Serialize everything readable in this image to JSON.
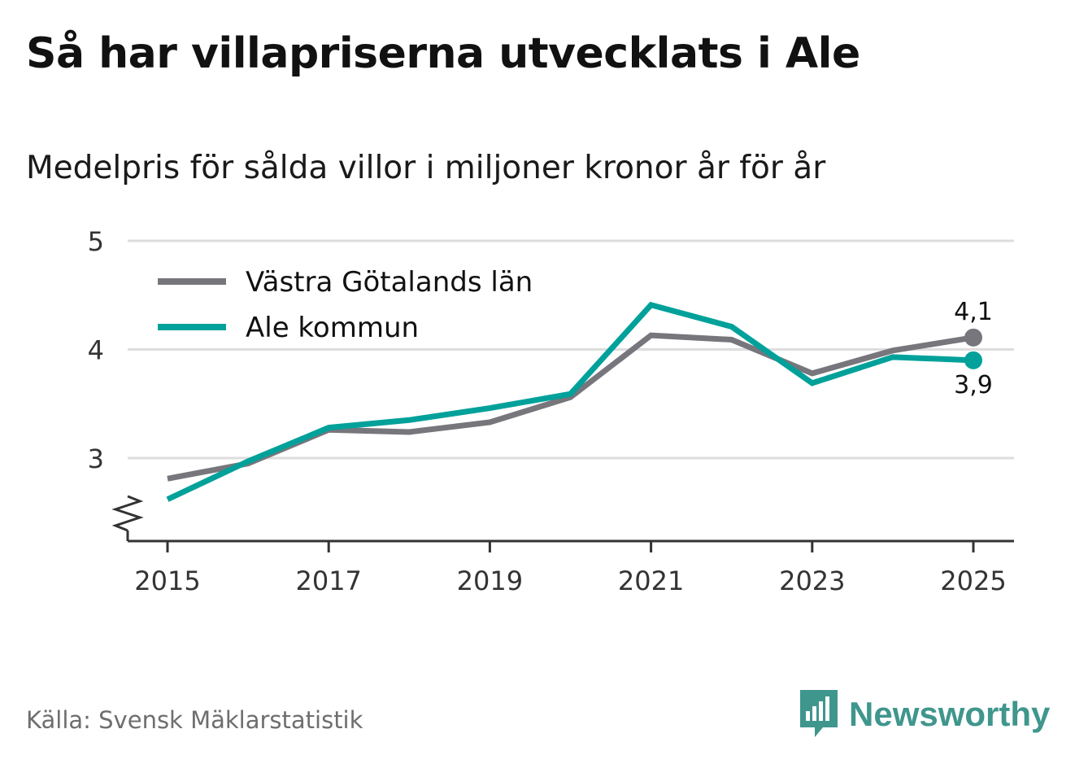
{
  "title": "Så har villapriserna utvecklats i Ale",
  "subtitle": "Medelpris för sålda villor i miljoner kronor år för år",
  "source": "Källa: Svensk Mäklarstatistik",
  "brand": {
    "name": "Newsworthy",
    "icon": "newsworthy-logo-icon",
    "color": "#3f968d"
  },
  "chart_data": {
    "type": "line",
    "title": "Så har villapriserna utvecklats i Ale",
    "subtitle": "Medelpris för sålda villor i miljoner kronor år för år",
    "xlabel": "",
    "ylabel": "",
    "x": [
      2015,
      2016,
      2017,
      2018,
      2019,
      2020,
      2021,
      2022,
      2023,
      2024,
      2025
    ],
    "xticks": [
      "2015",
      "2017",
      "2019",
      "2021",
      "2023",
      "2025"
    ],
    "xtick_values": [
      2015,
      2017,
      2019,
      2021,
      2023,
      2025
    ],
    "yticks": [
      "3",
      "4",
      "5"
    ],
    "ytick_values": [
      3,
      4,
      5
    ],
    "xlim": [
      2014.5,
      2025.5
    ],
    "ylim": [
      2.25,
      5
    ],
    "axis_break": true,
    "grid": true,
    "legend_position": "top-left",
    "series": [
      {
        "name": "Västra Götalands län",
        "color": "#77767c",
        "values": [
          2.81,
          2.95,
          3.26,
          3.24,
          3.33,
          3.56,
          4.13,
          4.09,
          3.78,
          3.99,
          4.11
        ],
        "end_label": "4,1"
      },
      {
        "name": "Ale kommun",
        "color": "#00a19a",
        "values": [
          2.62,
          2.97,
          3.28,
          3.35,
          3.46,
          3.59,
          4.41,
          4.21,
          3.69,
          3.93,
          3.9
        ],
        "end_label": "3,9"
      }
    ]
  }
}
